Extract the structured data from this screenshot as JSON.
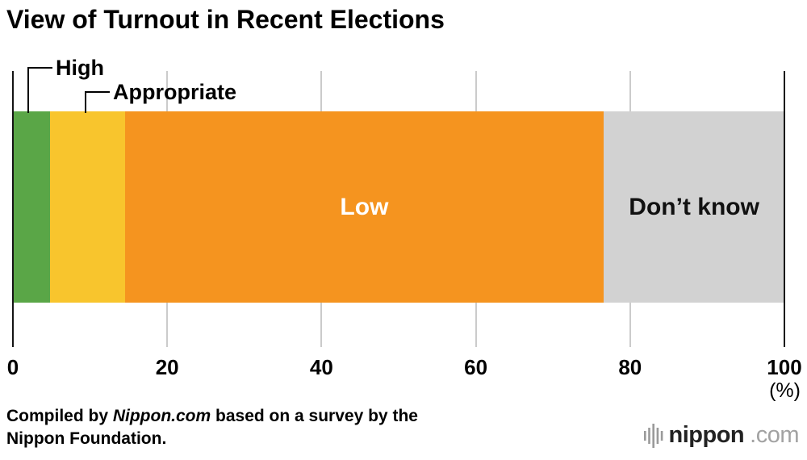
{
  "title": "View of Turnout in Recent Elections",
  "chart_data": {
    "type": "bar",
    "variant": "horizontal-stacked-100",
    "title": "View of Turnout in Recent Elections",
    "categories": [
      "High",
      "Appropriate",
      "Low",
      "Don’t know"
    ],
    "values": [
      4.8,
      9.7,
      62.1,
      23.4
    ],
    "colors": [
      "#5aa647",
      "#f8c52d",
      "#f5941f",
      "#d2d2d2"
    ],
    "label_styles": [
      "callout",
      "callout",
      "inside-white",
      "inside-dark"
    ],
    "x_ticks": [
      0,
      20,
      40,
      60,
      80,
      100
    ],
    "xlim": [
      0,
      100
    ],
    "x_unit": "(%)",
    "grid": true,
    "legend": "none"
  },
  "footer": {
    "credit_prefix": "Compiled by ",
    "credit_source": "Nippon.com",
    "credit_suffix": " based on a survey by the",
    "credit_line2": "Nippon Foundation.",
    "logo": {
      "icon": "soundwave-icon",
      "name": "nippon",
      "suffix": ".com"
    }
  }
}
